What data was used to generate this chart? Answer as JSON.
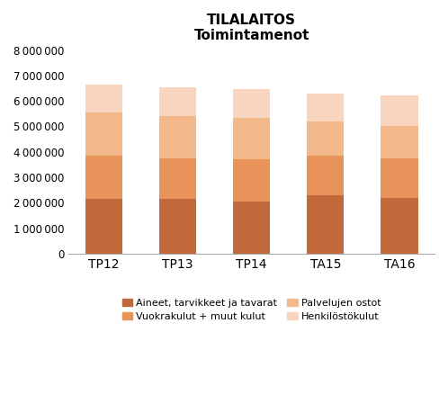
{
  "categories": [
    "TP12",
    "TP13",
    "TP14",
    "TA15",
    "TA16"
  ],
  "title_line1": "TILALAITOS",
  "title_line2": "Toimintamenot",
  "series": [
    {
      "label": "Aineet, tarvikkeet ja tavarat",
      "color": "#C1693A",
      "values": [
        2150000,
        2150000,
        2050000,
        2300000,
        2200000
      ]
    },
    {
      "label": "Vuokrakulut + muut kulut",
      "color": "#E8935A",
      "values": [
        1700000,
        1600000,
        1650000,
        1550000,
        1550000
      ]
    },
    {
      "label": "Palvelujen ostot",
      "color": "#F4B98A",
      "values": [
        1700000,
        1650000,
        1650000,
        1350000,
        1250000
      ]
    },
    {
      "label": "Henkilöstökulut",
      "color": "#F9D5C0",
      "values": [
        1100000,
        1150000,
        1100000,
        1100000,
        1200000
      ]
    }
  ],
  "ylim": [
    0,
    8000000
  ],
  "yticks": [
    0,
    1000000,
    2000000,
    3000000,
    4000000,
    5000000,
    6000000,
    7000000,
    8000000
  ],
  "background_color": "#ffffff",
  "legend_ncol": 2,
  "bar_width": 0.5
}
